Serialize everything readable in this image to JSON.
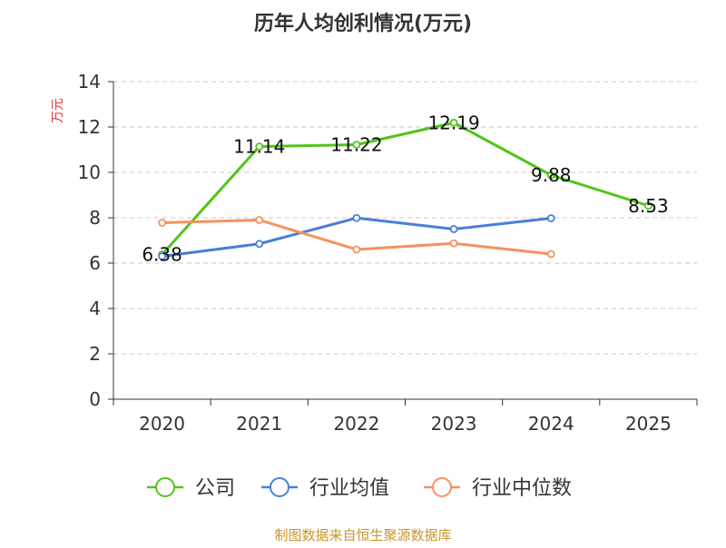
{
  "chart_data": {
    "type": "line",
    "title": "历年人均创利情况(万元)",
    "ylabel": "万元",
    "xlabel": "",
    "ylim": [
      0,
      14
    ],
    "yticks": [
      0,
      2,
      4,
      6,
      8,
      10,
      12,
      14
    ],
    "grid": true,
    "legend_position": "bottom",
    "categories": [
      "2020",
      "2021",
      "2022",
      "2023",
      "2024",
      "2025"
    ],
    "series": [
      {
        "name": "公司",
        "color": "#52c41a",
        "values": [
          6.38,
          11.14,
          11.22,
          12.19,
          9.88,
          8.53
        ],
        "labels": [
          "6.38",
          "11.14",
          "11.22",
          "12.19",
          "9.88",
          "8.53"
        ]
      },
      {
        "name": "行业均值",
        "color": "#4a7fd6",
        "values": [
          6.3,
          6.85,
          7.99,
          7.5,
          7.98,
          null
        ]
      },
      {
        "name": "行业中位数",
        "color": "#f5925e",
        "values": [
          7.78,
          7.9,
          6.6,
          6.87,
          6.4,
          null
        ]
      }
    ],
    "source": "制图数据来自恒生聚源数据库"
  }
}
